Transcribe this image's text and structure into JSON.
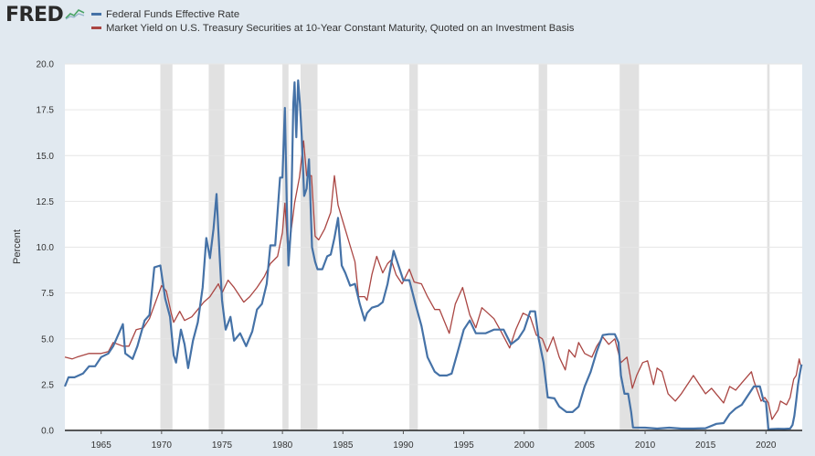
{
  "brand": {
    "logo_text": "FRED",
    "logo_icon": "fred-line-icon"
  },
  "colors": {
    "fed_funds": "#4572a7",
    "treasury_10y": "#aa4643",
    "recession": "#e1e1e1",
    "background": "#e1e9f0",
    "plot": "#ffffff"
  },
  "chart_data": {
    "type": "line",
    "title": "",
    "xlabel": "",
    "ylabel": "Percent",
    "xlim": [
      1962.0,
      2023.0
    ],
    "ylim": [
      0,
      20
    ],
    "yticks": [
      "0.0",
      "2.5",
      "5.0",
      "7.5",
      "10.0",
      "12.5",
      "15.0",
      "17.5",
      "20.0"
    ],
    "xticks": [
      "1965",
      "1970",
      "1975",
      "1980",
      "1985",
      "1990",
      "1995",
      "2000",
      "2005",
      "2010",
      "2015",
      "2020"
    ],
    "legend": [
      "Federal Funds Effective Rate",
      "Market Yield on U.S. Treasury Securities at 10-Year Constant Maturity, Quoted on an Investment Basis"
    ],
    "legend_position": "top-left",
    "recessions": [
      [
        1969.9,
        1970.9
      ],
      [
        1973.9,
        1975.2
      ],
      [
        1980.0,
        1980.5
      ],
      [
        1981.5,
        1982.9
      ],
      [
        1990.5,
        1991.2
      ],
      [
        2001.2,
        2001.9
      ],
      [
        2007.9,
        2009.5
      ],
      [
        2020.1,
        2020.3
      ]
    ],
    "series": [
      {
        "name": "Federal Funds Effective Rate",
        "x": [
          1962.0,
          1962.3,
          1962.8,
          1963.5,
          1964.0,
          1964.5,
          1965.0,
          1965.6,
          1966.0,
          1966.8,
          1967.0,
          1967.6,
          1968.0,
          1968.6,
          1969.0,
          1969.4,
          1969.9,
          1970.3,
          1970.7,
          1971.0,
          1971.2,
          1971.6,
          1971.9,
          1972.2,
          1972.6,
          1973.0,
          1973.4,
          1973.7,
          1974.0,
          1974.3,
          1974.55,
          1974.8,
          1975.0,
          1975.3,
          1975.7,
          1976.0,
          1976.5,
          1977.0,
          1977.5,
          1977.9,
          1978.3,
          1978.7,
          1979.0,
          1979.4,
          1979.8,
          1980.0,
          1980.2,
          1980.35,
          1980.5,
          1980.7,
          1980.9,
          1981.0,
          1981.15,
          1981.3,
          1981.45,
          1981.6,
          1981.8,
          1982.0,
          1982.2,
          1982.45,
          1982.7,
          1982.9,
          1983.3,
          1983.7,
          1984.0,
          1984.3,
          1984.6,
          1984.9,
          1985.2,
          1985.6,
          1986.0,
          1986.4,
          1986.8,
          1987.0,
          1987.4,
          1987.9,
          1988.3,
          1988.7,
          1989.2,
          1989.6,
          1990.0,
          1990.5,
          1991.0,
          1991.5,
          1992.0,
          1992.6,
          1993.0,
          1993.6,
          1994.0,
          1994.5,
          1995.0,
          1995.5,
          1996.0,
          1996.8,
          1997.5,
          1998.3,
          1998.9,
          1999.5,
          2000.0,
          2000.5,
          2000.9,
          2001.2,
          2001.6,
          2001.95,
          2002.5,
          2002.9,
          2003.5,
          2004.0,
          2004.5,
          2005.0,
          2005.5,
          2006.0,
          2006.5,
          2007.0,
          2007.5,
          2007.8,
          2008.0,
          2008.3,
          2008.6,
          2008.85,
          2009.0,
          2010.0,
          2011.0,
          2012.0,
          2013.0,
          2014.0,
          2015.0,
          2015.9,
          2016.5,
          2017.0,
          2017.5,
          2018.0,
          2018.5,
          2019.0,
          2019.5,
          2019.8,
          2020.0,
          2020.2,
          2020.4,
          2021.0,
          2021.5,
          2022.0,
          2022.2,
          2022.35,
          2022.5,
          2022.65,
          2022.8,
          2022.95
        ],
        "values": [
          2.4,
          2.9,
          2.9,
          3.1,
          3.5,
          3.5,
          4.0,
          4.2,
          4.6,
          5.8,
          4.2,
          3.9,
          4.6,
          6.0,
          6.3,
          8.9,
          9.0,
          7.2,
          6.2,
          4.1,
          3.7,
          5.5,
          4.7,
          3.4,
          4.9,
          5.9,
          7.8,
          10.5,
          9.4,
          11.0,
          12.9,
          9.6,
          7.1,
          5.5,
          6.2,
          4.9,
          5.3,
          4.6,
          5.4,
          6.6,
          6.9,
          8.0,
          10.1,
          10.1,
          13.8,
          13.8,
          17.6,
          12.5,
          9.0,
          11.0,
          17.8,
          19.0,
          16.0,
          19.1,
          17.8,
          16.0,
          12.8,
          13.2,
          14.8,
          10.0,
          9.2,
          8.8,
          8.8,
          9.5,
          9.6,
          10.5,
          11.6,
          9.0,
          8.6,
          7.9,
          8.0,
          6.9,
          6.0,
          6.4,
          6.7,
          6.8,
          7.0,
          8.0,
          9.8,
          9.0,
          8.2,
          8.2,
          6.9,
          5.7,
          4.0,
          3.2,
          3.0,
          3.0,
          3.1,
          4.3,
          5.5,
          6.0,
          5.3,
          5.3,
          5.5,
          5.5,
          4.7,
          5.0,
          5.5,
          6.5,
          6.5,
          5.0,
          3.7,
          1.8,
          1.75,
          1.3,
          1.0,
          1.0,
          1.3,
          2.4,
          3.2,
          4.3,
          5.2,
          5.25,
          5.25,
          4.8,
          3.0,
          2.0,
          2.0,
          1.0,
          0.16,
          0.15,
          0.1,
          0.15,
          0.1,
          0.1,
          0.12,
          0.36,
          0.4,
          0.9,
          1.2,
          1.4,
          1.9,
          2.4,
          2.4,
          1.6,
          1.55,
          0.05,
          0.07,
          0.09,
          0.08,
          0.1,
          0.3,
          0.8,
          1.6,
          2.5,
          3.1,
          3.6
        ]
      },
      {
        "name": "Market Yield on U.S. Treasury Securities at 10-Year Constant Maturity, Quoted on an Investment Basis",
        "x": [
          1962.0,
          1962.6,
          1963.0,
          1964.0,
          1965.0,
          1965.6,
          1966.0,
          1966.8,
          1967.3,
          1967.9,
          1968.5,
          1969.0,
          1969.5,
          1970.0,
          1970.4,
          1970.8,
          1971.0,
          1971.5,
          1971.9,
          1972.5,
          1973.0,
          1973.5,
          1974.0,
          1974.7,
          1975.0,
          1975.5,
          1976.0,
          1976.8,
          1977.3,
          1977.9,
          1978.5,
          1979.0,
          1979.6,
          1980.0,
          1980.2,
          1980.45,
          1980.7,
          1981.0,
          1981.4,
          1981.75,
          1982.0,
          1982.4,
          1982.7,
          1983.0,
          1983.5,
          1984.0,
          1984.3,
          1984.6,
          1985.0,
          1985.5,
          1986.0,
          1986.3,
          1986.8,
          1987.0,
          1987.4,
          1987.8,
          1988.3,
          1988.7,
          1989.0,
          1989.4,
          1989.9,
          1990.5,
          1990.9,
          1991.5,
          1992.0,
          1992.6,
          1993.0,
          1993.8,
          1994.3,
          1994.9,
          1995.5,
          1996.0,
          1996.5,
          1997.0,
          1997.5,
          1998.0,
          1998.8,
          1999.3,
          1999.9,
          2000.5,
          2001.0,
          2001.5,
          2001.9,
          2002.4,
          2002.9,
          2003.4,
          2003.7,
          2004.2,
          2004.5,
          2005.0,
          2005.6,
          2006.0,
          2006.5,
          2007.0,
          2007.5,
          2008.0,
          2008.5,
          2008.95,
          2009.3,
          2009.8,
          2010.2,
          2010.7,
          2011.0,
          2011.4,
          2011.9,
          2012.5,
          2013.0,
          2013.7,
          2014.0,
          2014.5,
          2015.0,
          2015.5,
          2016.0,
          2016.5,
          2017.0,
          2017.5,
          2018.0,
          2018.8,
          2019.0,
          2019.6,
          2019.9,
          2020.2,
          2020.5,
          2021.0,
          2021.2,
          2021.7,
          2022.0,
          2022.3,
          2022.5,
          2022.75,
          2022.85,
          2022.95
        ],
        "values": [
          4.0,
          3.9,
          4.0,
          4.2,
          4.2,
          4.3,
          4.8,
          4.6,
          4.6,
          5.5,
          5.6,
          6.1,
          7.0,
          7.9,
          7.6,
          6.4,
          5.9,
          6.5,
          6.0,
          6.2,
          6.6,
          7.0,
          7.3,
          8.0,
          7.5,
          8.2,
          7.8,
          7.0,
          7.3,
          7.8,
          8.4,
          9.1,
          9.5,
          10.8,
          12.4,
          9.8,
          10.8,
          12.4,
          13.8,
          15.8,
          13.9,
          13.9,
          10.6,
          10.4,
          11.0,
          11.9,
          13.9,
          12.3,
          11.4,
          10.3,
          9.2,
          7.3,
          7.3,
          7.1,
          8.5,
          9.5,
          8.6,
          9.1,
          9.3,
          8.5,
          8.0,
          8.8,
          8.1,
          8.0,
          7.3,
          6.6,
          6.6,
          5.3,
          6.9,
          7.8,
          6.3,
          5.6,
          6.7,
          6.4,
          6.1,
          5.5,
          4.5,
          5.5,
          6.4,
          6.2,
          5.2,
          5.0,
          4.3,
          5.1,
          4.0,
          3.3,
          4.4,
          4.0,
          4.8,
          4.2,
          4.0,
          4.6,
          5.1,
          4.7,
          5.0,
          3.7,
          4.0,
          2.3,
          3.0,
          3.7,
          3.8,
          2.5,
          3.4,
          3.2,
          2.0,
          1.6,
          2.0,
          2.7,
          3.0,
          2.5,
          2.0,
          2.3,
          1.9,
          1.5,
          2.4,
          2.2,
          2.6,
          3.2,
          2.7,
          1.6,
          1.8,
          1.5,
          0.6,
          1.1,
          1.6,
          1.4,
          1.8,
          2.8,
          3.0,
          3.9,
          3.6,
          3.5
        ]
      }
    ]
  }
}
